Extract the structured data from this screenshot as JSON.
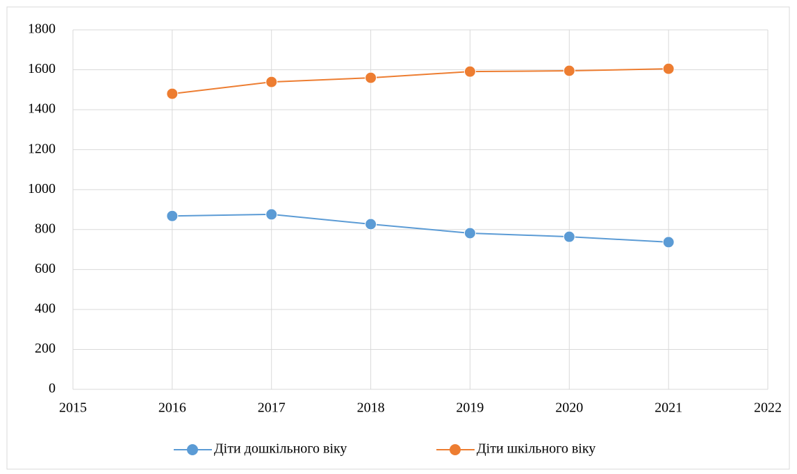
{
  "chart_data": {
    "type": "line",
    "x": [
      2016,
      2017,
      2018,
      2019,
      2020,
      2021
    ],
    "series": [
      {
        "name": "Діти дошкільного віку",
        "color": "#5b9bd5",
        "values": [
          868,
          876,
          827,
          782,
          764,
          737
        ]
      },
      {
        "name": "Діти шкільного віку",
        "color": "#ed7d31",
        "values": [
          1480,
          1539,
          1560,
          1591,
          1595,
          1605
        ]
      }
    ],
    "xlim": [
      2015,
      2022
    ],
    "xticks": [
      2015,
      2016,
      2017,
      2018,
      2019,
      2020,
      2021,
      2022
    ],
    "ylim": [
      0,
      1800
    ],
    "yticks": [
      0,
      200,
      400,
      600,
      800,
      1000,
      1200,
      1400,
      1600,
      1800
    ],
    "grid": true,
    "legend": "bottom"
  }
}
